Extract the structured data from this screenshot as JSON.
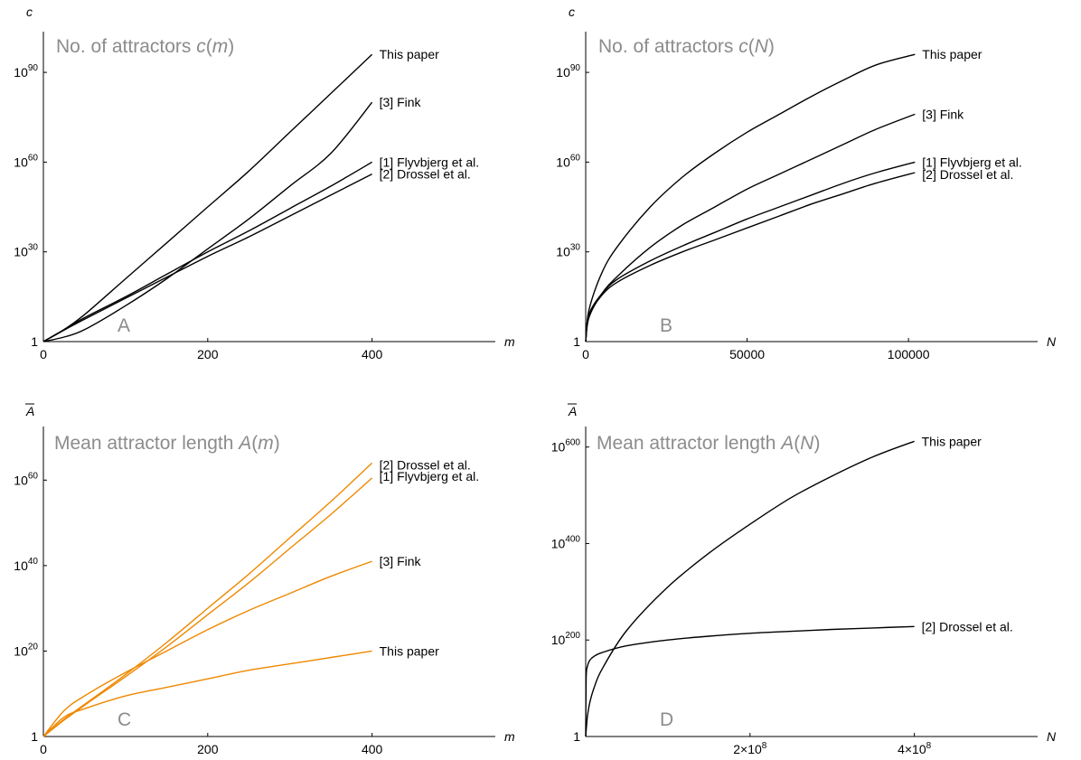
{
  "chart_data": [
    {
      "type": "line",
      "panel": "A",
      "title": "No. of attractors c(m)",
      "title_parts": [
        "No. of attractors ",
        "c",
        "(",
        "m",
        ")"
      ],
      "xlabel": "m",
      "ylabel": "c",
      "x_scale": "linear",
      "y_scale": "log10",
      "xlim": [
        0,
        550
      ],
      "ylim": [
        0,
        100
      ],
      "x_ticks": [
        0,
        200,
        400
      ],
      "x_tick_labels": [
        "0",
        "200",
        "400"
      ],
      "y_ticks": [
        0,
        30,
        60,
        90
      ],
      "y_tick_labels": [
        {
          "base": "1",
          "exp": ""
        },
        {
          "base": "10",
          "exp": "30"
        },
        {
          "base": "10",
          "exp": "60"
        },
        {
          "base": "10",
          "exp": "90"
        }
      ],
      "color": "#000000",
      "series": [
        {
          "name": "This paper",
          "x": [
            0,
            25,
            50,
            100,
            150,
            200,
            250,
            300,
            350,
            400
          ],
          "y": [
            0,
            4,
            9,
            21,
            33,
            45,
            57,
            70,
            83,
            96
          ]
        },
        {
          "name": "[3] Fink",
          "x": [
            0,
            25,
            50,
            100,
            150,
            200,
            250,
            300,
            350,
            400
          ],
          "y": [
            0,
            1.5,
            4,
            12,
            21,
            31,
            41,
            52,
            63,
            80
          ]
        },
        {
          "name": "[1] Flyvbjerg et al.",
          "x": [
            0,
            25,
            50,
            100,
            150,
            200,
            250,
            300,
            350,
            400
          ],
          "y": [
            0,
            4,
            8,
            15,
            22.5,
            30,
            37,
            44.5,
            52,
            60
          ]
        },
        {
          "name": "[2] Drossel et al.",
          "x": [
            0,
            25,
            50,
            100,
            150,
            200,
            250,
            300,
            350,
            400
          ],
          "y": [
            0,
            3.8,
            7.5,
            14.5,
            21.5,
            28.5,
            35,
            42,
            49,
            56
          ]
        }
      ]
    },
    {
      "type": "line",
      "panel": "B",
      "title": "No. of attractors c(N)",
      "title_parts": [
        "No. of attractors ",
        "c",
        "(",
        "N",
        ")"
      ],
      "xlabel": "N",
      "ylabel": "c",
      "x_scale": "linear",
      "y_scale": "log10",
      "xlim": [
        0,
        140000
      ],
      "ylim": [
        0,
        100
      ],
      "x_ticks": [
        0,
        50000,
        100000
      ],
      "x_tick_labels": [
        "0",
        "50000",
        "100000"
      ],
      "y_ticks": [
        0,
        30,
        60,
        90
      ],
      "y_tick_labels": [
        {
          "base": "1",
          "exp": ""
        },
        {
          "base": "10",
          "exp": "30"
        },
        {
          "base": "10",
          "exp": "60"
        },
        {
          "base": "10",
          "exp": "90"
        }
      ],
      "color": "#000000",
      "series": [
        {
          "name": "This paper",
          "x": [
            0,
            1000,
            5000,
            10000,
            20000,
            30000,
            40000,
            50000,
            60000,
            70000,
            80000,
            90000,
            102000
          ],
          "y": [
            0,
            10.5,
            23,
            32,
            45,
            55,
            63,
            70,
            76,
            82,
            87.5,
            92.5,
            96
          ]
        },
        {
          "name": "[3] Fink",
          "x": [
            0,
            1000,
            5000,
            10000,
            20000,
            30000,
            40000,
            50000,
            60000,
            70000,
            80000,
            90000,
            102000
          ],
          "y": [
            0,
            8,
            16,
            22,
            31.5,
            39,
            45,
            51,
            56,
            61,
            66,
            71,
            76
          ]
        },
        {
          "name": "[1] Flyvbjerg et al.",
          "x": [
            0,
            1000,
            5000,
            10000,
            20000,
            30000,
            40000,
            50000,
            60000,
            70000,
            80000,
            90000,
            102000
          ],
          "y": [
            0,
            9,
            16,
            21,
            27,
            32,
            36.5,
            41,
            45,
            49,
            53,
            56.5,
            60
          ]
        },
        {
          "name": "[2] Drossel et al.",
          "x": [
            0,
            1000,
            5000,
            10000,
            20000,
            30000,
            40000,
            50000,
            60000,
            70000,
            80000,
            90000,
            102000
          ],
          "y": [
            0,
            8.5,
            15.5,
            20,
            25.5,
            30,
            34,
            38,
            42,
            46,
            49.5,
            53,
            56.5
          ]
        }
      ]
    },
    {
      "type": "line",
      "panel": "C",
      "title": "Mean attractor length A(m)",
      "title_parts": [
        "Mean attractor length ",
        "A",
        "(",
        "m",
        ")"
      ],
      "xlabel": "m",
      "ylabel": "A",
      "x_scale": "linear",
      "y_scale": "log10",
      "xlim": [
        0,
        550
      ],
      "ylim": [
        0,
        70
      ],
      "x_ticks": [
        0,
        200,
        400
      ],
      "x_tick_labels": [
        "0",
        "200",
        "400"
      ],
      "y_ticks": [
        0,
        20,
        40,
        60
      ],
      "y_tick_labels": [
        {
          "base": "1",
          "exp": ""
        },
        {
          "base": "10",
          "exp": "20"
        },
        {
          "base": "10",
          "exp": "40"
        },
        {
          "base": "10",
          "exp": "60"
        }
      ],
      "color": "#ee8800",
      "series": [
        {
          "name": "[2] Drossel et al.",
          "x": [
            0,
            25,
            50,
            100,
            150,
            200,
            250,
            300,
            350,
            400
          ],
          "y": [
            0,
            4,
            7.5,
            14.5,
            22,
            30,
            38,
            46.5,
            55,
            64
          ]
        },
        {
          "name": "[1] Flyvbjerg et al.",
          "x": [
            0,
            25,
            50,
            100,
            150,
            200,
            250,
            300,
            350,
            400
          ],
          "y": [
            0,
            3.8,
            7.3,
            14,
            21,
            28.5,
            36,
            44,
            52,
            60.5
          ]
        },
        {
          "name": "[3] Fink",
          "x": [
            0,
            25,
            50,
            100,
            150,
            200,
            250,
            300,
            350,
            400
          ],
          "y": [
            0,
            6,
            9.5,
            15,
            20,
            25,
            29.5,
            33.5,
            37.5,
            41
          ]
        },
        {
          "name": "This paper",
          "x": [
            0,
            25,
            50,
            100,
            150,
            200,
            250,
            300,
            350,
            400
          ],
          "y": [
            0,
            4.5,
            6.5,
            9.5,
            11.5,
            13.5,
            15.5,
            17,
            18.5,
            20
          ]
        }
      ]
    },
    {
      "type": "line",
      "panel": "D",
      "title": "Mean attractor length A(N)",
      "title_parts": [
        "Mean attractor length ",
        "A",
        "(",
        "N",
        ")"
      ],
      "xlabel": "N",
      "ylabel": "A",
      "x_scale": "linear",
      "y_scale": "log10",
      "xlim": [
        0,
        550000000
      ],
      "ylim": [
        0,
        620
      ],
      "x_ticks": [
        200000000,
        400000000
      ],
      "x_tick_labels": [
        "2×10",
        "4×10"
      ],
      "x_tick_exps": [
        "8",
        "8"
      ],
      "y_ticks": [
        0,
        200,
        400,
        600
      ],
      "y_tick_labels": [
        {
          "base": "1",
          "exp": ""
        },
        {
          "base": "10",
          "exp": "200"
        },
        {
          "base": "10",
          "exp": "400"
        },
        {
          "base": "10",
          "exp": "600"
        }
      ],
      "color": "#000000",
      "series": [
        {
          "name": "This paper",
          "x": [
            0,
            2000000,
            5000000,
            10000000,
            20000000,
            50000000,
            100000000,
            150000000,
            200000000,
            250000000,
            300000000,
            350000000,
            400000000
          ],
          "y": [
            0,
            40,
            70,
            100,
            140,
            220,
            310,
            380,
            440,
            495,
            540,
            580,
            612
          ]
        },
        {
          "name": "[2] Drossel et al.",
          "x": [
            0,
            500000,
            2000000,
            5000000,
            10000000,
            20000000,
            50000000,
            100000000,
            150000000,
            200000000,
            250000000,
            300000000,
            350000000,
            400000000
          ],
          "y": [
            0,
            120,
            145,
            158,
            166,
            174,
            188,
            200,
            208,
            214,
            218,
            222,
            225,
            228
          ]
        }
      ]
    }
  ]
}
